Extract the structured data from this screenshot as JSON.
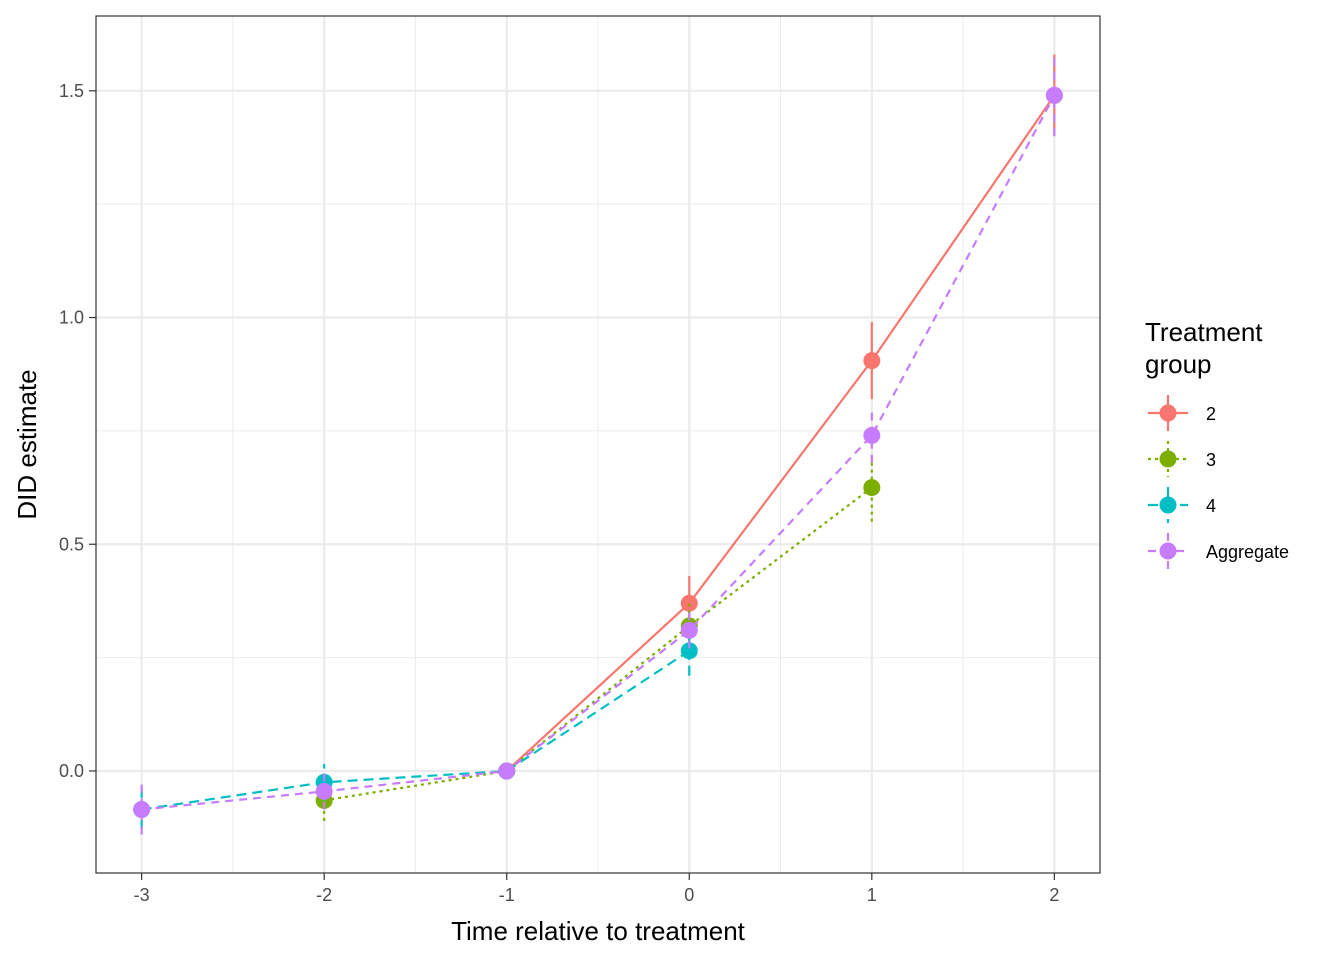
{
  "chart_data": {
    "type": "line",
    "title": "",
    "xlabel": "Time relative to treatment",
    "ylabel": "DID estimate",
    "xlim": [
      -3.25,
      2.25
    ],
    "ylim": [
      -0.225,
      1.665
    ],
    "x_ticks": [
      -3,
      -2,
      -1,
      0,
      1,
      2
    ],
    "x_tick_labels": [
      "-3",
      "-2",
      "-1",
      "0",
      "1",
      "2"
    ],
    "y_ticks": [
      0.0,
      0.5,
      1.0,
      1.5
    ],
    "y_tick_labels": [
      "0.0",
      "0.5",
      "1.0",
      "1.5"
    ],
    "grid": true,
    "legend": {
      "title_lines": [
        "Treatment",
        "group"
      ],
      "position": "right"
    },
    "series": [
      {
        "name": "2",
        "color": "#F8766D",
        "dash": "solid",
        "points": [
          {
            "x": -1,
            "y": 0.0,
            "lo": 0.0,
            "hi": 0.0
          },
          {
            "x": 0,
            "y": 0.37,
            "lo": 0.31,
            "hi": 0.43
          },
          {
            "x": 1,
            "y": 0.905,
            "lo": 0.82,
            "hi": 0.99
          },
          {
            "x": 2,
            "y": 1.49,
            "lo": 1.4,
            "hi": 1.58
          }
        ]
      },
      {
        "name": "3",
        "color": "#7CAE00",
        "dash": "dotted",
        "points": [
          {
            "x": -2,
            "y": -0.065,
            "lo": -0.11,
            "hi": -0.02
          },
          {
            "x": -1,
            "y": 0.0,
            "lo": 0.0,
            "hi": 0.0
          },
          {
            "x": 0,
            "y": 0.32,
            "lo": 0.27,
            "hi": 0.37
          },
          {
            "x": 1,
            "y": 0.625,
            "lo": 0.55,
            "hi": 0.7
          }
        ]
      },
      {
        "name": "4",
        "color": "#00BFC4",
        "dash": "longdash",
        "points": [
          {
            "x": -3,
            "y": -0.085,
            "lo": -0.13,
            "hi": -0.04
          },
          {
            "x": -2,
            "y": -0.025,
            "lo": -0.065,
            "hi": 0.015
          },
          {
            "x": -1,
            "y": 0.0,
            "lo": 0.0,
            "hi": 0.0
          },
          {
            "x": 0,
            "y": 0.265,
            "lo": 0.21,
            "hi": 0.32
          }
        ]
      },
      {
        "name": "Aggregate",
        "color": "#C77CFF",
        "dash": "dashed",
        "points": [
          {
            "x": -3,
            "y": -0.085,
            "lo": -0.14,
            "hi": -0.03
          },
          {
            "x": -2,
            "y": -0.045,
            "lo": -0.085,
            "hi": -0.005
          },
          {
            "x": -1,
            "y": 0.0,
            "lo": 0.0,
            "hi": 0.0
          },
          {
            "x": 0,
            "y": 0.31,
            "lo": 0.27,
            "hi": 0.35
          },
          {
            "x": 1,
            "y": 0.74,
            "lo": 0.68,
            "hi": 0.8
          },
          {
            "x": 2,
            "y": 1.49,
            "lo": 1.4,
            "hi": 1.58
          }
        ]
      }
    ]
  }
}
